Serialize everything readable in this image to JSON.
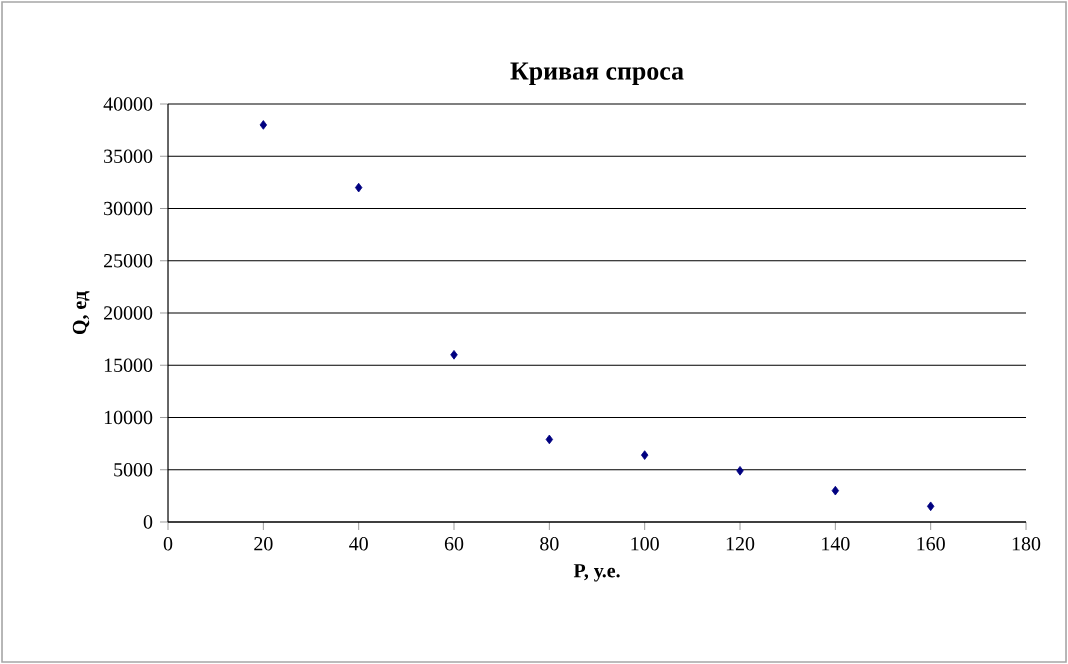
{
  "chart_data": {
    "type": "scatter",
    "title": "Кривая спроса",
    "xlabel": "P, у.е.",
    "ylabel": "Q, ед",
    "x": [
      20,
      40,
      60,
      80,
      100,
      120,
      140,
      160
    ],
    "series": [
      {
        "color": "#000080",
        "values": [
          38000,
          32000,
          16000,
          7900,
          6400,
          4900,
          3000,
          1500
        ]
      }
    ],
    "marker": "diamond",
    "grid": "y",
    "xlim": [
      0,
      180
    ],
    "xticks": [
      0,
      20,
      40,
      60,
      80,
      100,
      120,
      140,
      160,
      180
    ],
    "ylim": [
      0,
      40000
    ],
    "yticks": [
      0,
      5000,
      10000,
      15000,
      20000,
      25000,
      30000,
      35000,
      40000
    ]
  }
}
